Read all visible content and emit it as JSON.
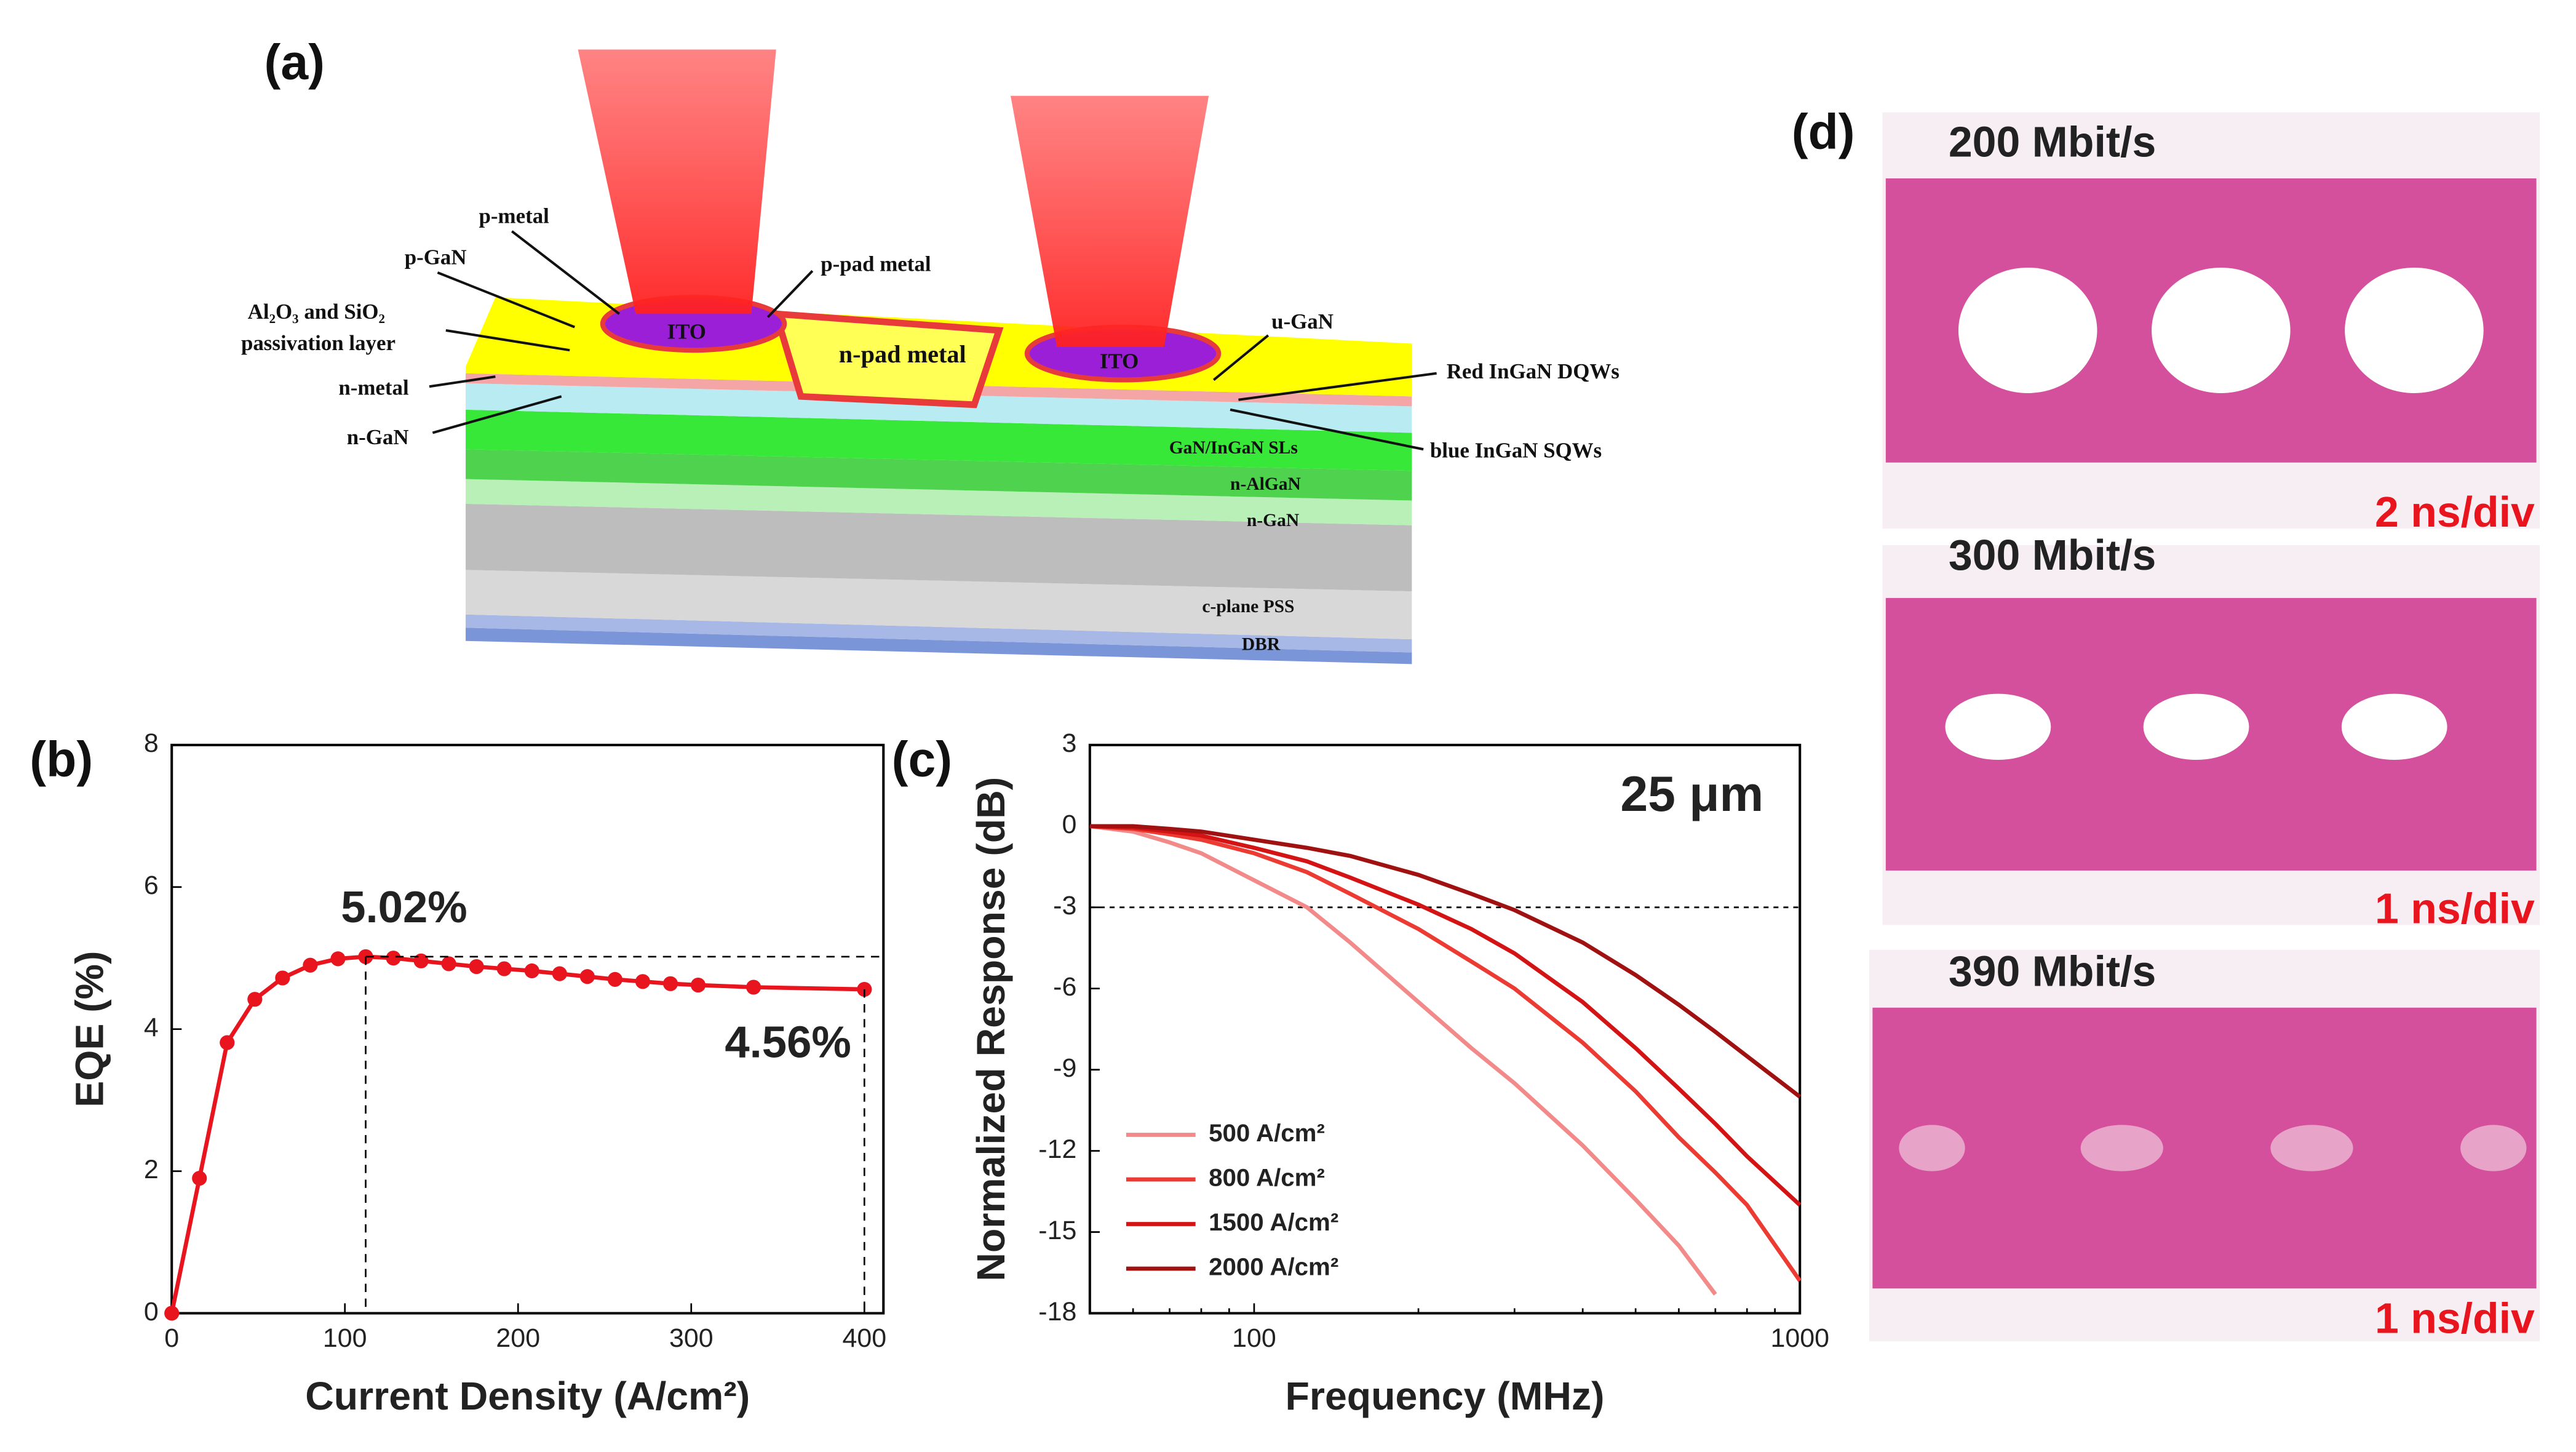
{
  "panels": [
    "(a)",
    "(b)",
    "(c)",
    "(d)"
  ],
  "diagram": {
    "labels": [
      "p-metal",
      "p-GaN",
      "Al₂O₃ and SiO₂",
      "passivation layer",
      "n-metal",
      "n-GaN",
      "p-pad metal",
      "ITO",
      "n-pad metal",
      "ITO",
      "u-GaN",
      "Red InGaN DQWs",
      "blue InGaN SQWs",
      "GaN/InGaN SLs",
      "n-AlGaN",
      "n-GaN",
      "c-plane PSS",
      "DBR"
    ]
  },
  "eye_diagrams": [
    {
      "rate": "200 Mbit/s",
      "scale": "2 ns/div"
    },
    {
      "rate": "300 Mbit/s",
      "scale": "1 ns/div"
    },
    {
      "rate": "390 Mbit/s",
      "scale": "1 ns/div"
    }
  ],
  "chart_data": [
    {
      "type": "line",
      "xlabel": "Current Density (A/cm²)",
      "ylabel": "EQE (%)",
      "x": [
        0,
        16,
        32,
        48,
        64,
        80,
        96,
        112,
        128,
        144,
        160,
        176,
        192,
        208,
        224,
        240,
        256,
        272,
        288,
        304,
        336,
        400
      ],
      "series": [
        {
          "name": "EQE",
          "color": "#e8141e",
          "values": [
            0,
            1.9,
            3.81,
            4.42,
            4.72,
            4.9,
            4.99,
            5.02,
            5.0,
            4.96,
            4.92,
            4.88,
            4.85,
            4.82,
            4.78,
            4.74,
            4.7,
            4.67,
            4.64,
            4.62,
            4.59,
            4.56
          ]
        }
      ],
      "markers": true,
      "dashed_guides": true,
      "annotations": [
        "5.02%",
        "4.56%"
      ],
      "xlim": [
        0,
        411
      ],
      "xticks": [
        0,
        100,
        200,
        300,
        400
      ],
      "ylim": [
        0,
        8
      ],
      "yticks": [
        0,
        2,
        4,
        6,
        8
      ]
    },
    {
      "type": "line",
      "xlabel": "Frequency (MHz)",
      "ylabel": "Normalized Response (dB)",
      "xlog": true,
      "x": [
        50,
        60,
        70,
        80,
        100,
        125,
        150,
        200,
        250,
        300,
        400,
        500,
        600,
        700,
        800,
        1000
      ],
      "series": [
        {
          "name": "500 A/cm²",
          "color": "#f28a8a",
          "values": [
            0,
            -0.2,
            -0.6,
            -1.0,
            -2.0,
            -3.0,
            -4.3,
            -6.5,
            -8.2,
            -9.5,
            -11.8,
            -13.8,
            -15.5,
            -17.3,
            null,
            null
          ]
        },
        {
          "name": "800 A/cm²",
          "color": "#ec3b32",
          "values": [
            0,
            -0.1,
            -0.3,
            -0.5,
            -1.0,
            -1.7,
            -2.5,
            -3.8,
            -5.0,
            -6.0,
            -8.0,
            -9.8,
            -11.5,
            -12.8,
            -14.0,
            -16.8
          ]
        },
        {
          "name": "1500 A/cm²",
          "color": "#d41414",
          "values": [
            0,
            -0.05,
            -0.2,
            -0.35,
            -0.8,
            -1.3,
            -1.9,
            -2.9,
            -3.8,
            -4.7,
            -6.5,
            -8.2,
            -9.7,
            -11.0,
            -12.2,
            -14.0
          ]
        },
        {
          "name": "2000 A/cm²",
          "color": "#a01212",
          "values": [
            0,
            0,
            -0.1,
            -0.2,
            -0.5,
            -0.8,
            -1.1,
            -1.8,
            -2.5,
            -3.1,
            -4.3,
            -5.5,
            -6.6,
            -7.6,
            -8.5,
            -10.0
          ]
        }
      ],
      "legend": "lower left",
      "hline": -3,
      "annotations": [
        "25 μm"
      ],
      "xlim": [
        50,
        1000
      ],
      "xticks": [
        100,
        1000
      ],
      "ylim": [
        -18,
        3
      ],
      "yticks": [
        -18,
        -15,
        -12,
        -9,
        -6,
        -3,
        0,
        3
      ]
    }
  ]
}
